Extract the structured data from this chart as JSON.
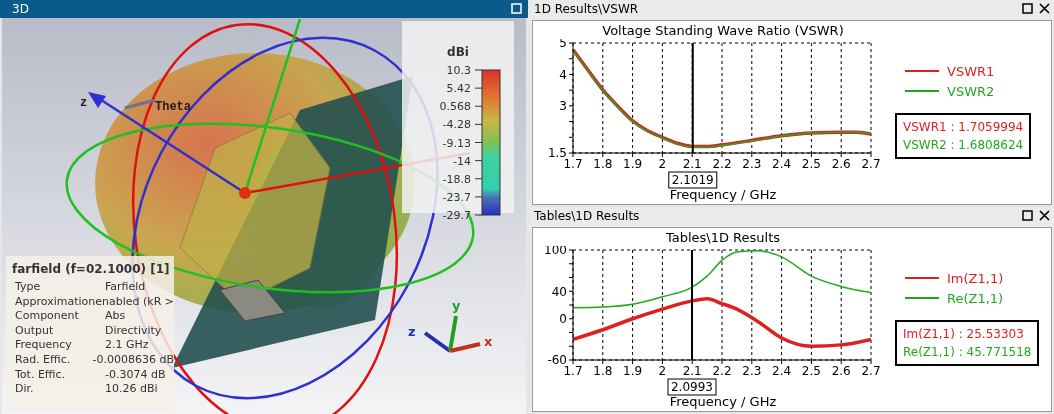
{
  "chart_data": [
    {
      "type": "other",
      "title": "farfield (f=02.1000) [1]",
      "clabel": "dBi",
      "annotations": [
        "3D",
        "Type",
        "Farfield",
        "Approximation",
        "enabled (kR >",
        "Component",
        "Abs",
        "Output",
        "Directivity",
        "Frequency",
        "2.1 GHz",
        "Rad. Effic.",
        "-0.0008636 dB",
        "Tot. Effic.",
        "-0.3074 dB",
        "Dir.",
        "10.26 dBi",
        "z",
        "Theta",
        "z",
        "y",
        "x",
        "10.3",
        "5.42",
        "0.568",
        "-4.28",
        "-9.13",
        "-14",
        "-18.8",
        "-23.7",
        "-29.7"
      ]
    },
    {
      "type": "line",
      "title": "Voltage Standing Wave Ratio (VSWR)",
      "xlabel": "Frequency / GHz",
      "x": [
        1.7,
        1.75,
        1.8,
        1.85,
        1.9,
        1.95,
        2.0,
        2.05,
        2.1,
        2.15,
        2.2,
        2.3,
        2.4,
        2.5,
        2.6,
        2.65,
        2.7
      ],
      "series": [
        {
          "name": "VSWR1",
          "color": "#e02020",
          "values": [
            4.78,
            4.14,
            3.51,
            2.99,
            2.52,
            2.21,
            2.0,
            1.81,
            1.71,
            1.71,
            1.76,
            1.9,
            2.05,
            2.14,
            2.16,
            2.16,
            2.1
          ]
        },
        {
          "name": "VSWR2",
          "color": "#20a820",
          "values": [
            4.76,
            4.12,
            3.49,
            2.97,
            2.5,
            2.19,
            1.98,
            1.79,
            1.69,
            1.68,
            1.74,
            1.88,
            2.04,
            2.14,
            2.16,
            2.16,
            2.11
          ]
        }
      ],
      "xlim": [
        1.7,
        2.7
      ],
      "xticks": [
        1.7,
        1.8,
        1.9,
        2,
        2.1,
        2.2,
        2.3,
        2.4,
        2.5,
        2.6,
        2.7
      ],
      "ylim": [
        1.5,
        5
      ],
      "yticks": [
        1.5,
        {
          "value": 2,
          "label": null
        },
        {
          "value": 2.5,
          "label": null
        },
        3,
        {
          "value": 3.5,
          "label": null
        },
        4,
        {
          "value": 4.5,
          "label": null
        },
        5
      ],
      "grid": true,
      "legend": "right",
      "ref_lines": [
        {
          "axis": "x",
          "value": 2.1019,
          "label": "2.1019",
          "color": "#000000"
        }
      ],
      "annotations": [
        "1D Results\\VSWR",
        "VSWR1 : 1.7059994",
        "VSWR2 : 1.6808624"
      ]
    },
    {
      "type": "line",
      "title": "Tables\\1D Results",
      "xlabel": "Frequency / GHz",
      "x": [
        1.7,
        1.8,
        1.9,
        2.0,
        2.1,
        2.15,
        2.2,
        2.25,
        2.32,
        2.4,
        2.5,
        2.6,
        2.7
      ],
      "series": [
        {
          "name": "Im(Z1,1)",
          "color": "#e02020",
          "values": [
            -30,
            -16,
            0,
            14,
            26,
            29,
            22,
            14,
            -4,
            -28,
            -40,
            -38,
            -30
          ]
        },
        {
          "name": "Re(Z1,1)",
          "color": "#20a820",
          "values": [
            16,
            17,
            21,
            32,
            46,
            62,
            85,
            97,
            99,
            90,
            62,
            47,
            38
          ]
        }
      ],
      "xlim": [
        1.7,
        2.7
      ],
      "xticks": [
        1.7,
        1.8,
        1.9,
        2,
        2.1,
        2.2,
        2.3,
        2.4,
        2.5,
        2.6,
        2.7
      ],
      "ylim": [
        -60,
        100
      ],
      "yticks": [
        -60,
        {
          "value": -40,
          "label": null
        },
        {
          "value": -20,
          "label": null
        },
        0,
        {
          "value": 20,
          "label": null
        },
        40,
        {
          "value": 60,
          "label": null
        },
        {
          "value": 80,
          "label": null
        },
        100
      ],
      "grid": true,
      "legend": "right",
      "ref_lines": [
        {
          "axis": "x",
          "value": 2.0993,
          "label": "2.0993",
          "color": "#000000"
        }
      ],
      "annotations": [
        "Tables\\1D Results",
        "Im(Z1,1) : 25.53303",
        "Re(Z1,1) : 45.771518"
      ]
    }
  ]
}
